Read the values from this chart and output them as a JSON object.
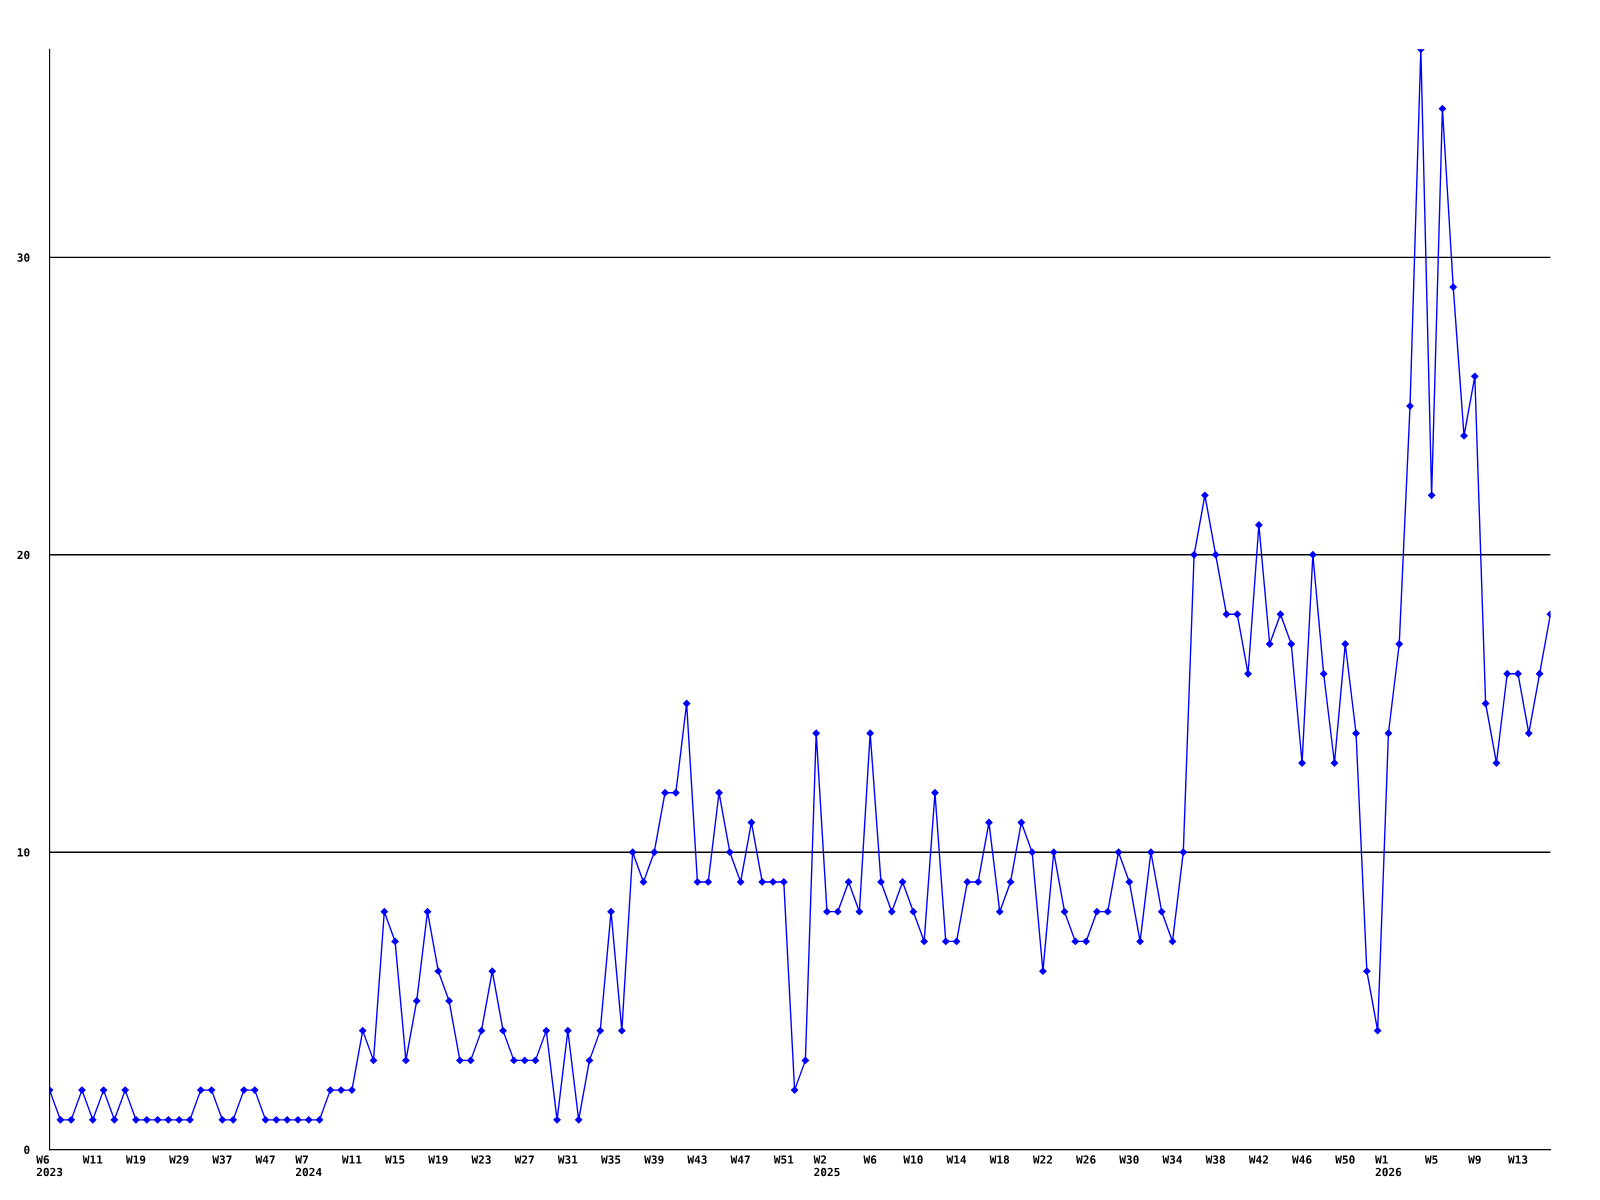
{
  "chart_data": {
    "type": "line",
    "categories": [
      "W6\n2023",
      null,
      null,
      null,
      "W11",
      null,
      null,
      null,
      "W19",
      null,
      null,
      null,
      "W29",
      null,
      null,
      null,
      "W37",
      null,
      null,
      null,
      "W47",
      null,
      null,
      null,
      "W7\n2024",
      null,
      null,
      null,
      "W11",
      null,
      null,
      null,
      "W15",
      null,
      null,
      null,
      "W19",
      null,
      null,
      null,
      "W23",
      null,
      null,
      null,
      "W27",
      null,
      null,
      null,
      "W31",
      null,
      null,
      null,
      "W35",
      null,
      null,
      null,
      "W39",
      null,
      null,
      null,
      "W43",
      null,
      null,
      null,
      "W47",
      null,
      null,
      null,
      "W51",
      null,
      null,
      null,
      "W2\n2025",
      null,
      null,
      null,
      "W6",
      null,
      null,
      null,
      "W10",
      null,
      null,
      null,
      "W14",
      null,
      null,
      null,
      "W18",
      null,
      null,
      null,
      "W22",
      null,
      null,
      null,
      "W26",
      null,
      null,
      null,
      "W30",
      null,
      null,
      null,
      "W34",
      null,
      null,
      null,
      "W38",
      null,
      null,
      null,
      "W42",
      null,
      null,
      null,
      "W46",
      null,
      null,
      null,
      "W50",
      null,
      null,
      null,
      "W1\n2026",
      null,
      null,
      null,
      "W5",
      null,
      null,
      null,
      "W9",
      null,
      null,
      null,
      "W13",
      null,
      null,
      null
    ],
    "series": [
      {
        "color": "#0000ff",
        "values": [
          2,
          1,
          1,
          2,
          1,
          2,
          1,
          2,
          1,
          1,
          1,
          1,
          1,
          1,
          2,
          2,
          1,
          1,
          2,
          2,
          1,
          1,
          1,
          1,
          1,
          1,
          2,
          2,
          2,
          4,
          3,
          8,
          7,
          3,
          5,
          8,
          6,
          5,
          3,
          3,
          4,
          6,
          4,
          3,
          3,
          3,
          4,
          1,
          4,
          1,
          3,
          4,
          8,
          4,
          10,
          9,
          10,
          12,
          12,
          15,
          9,
          9,
          12,
          10,
          9,
          11,
          9,
          9,
          9,
          2,
          3,
          14,
          8,
          8,
          9,
          8,
          14,
          9,
          8,
          9,
          8,
          7,
          12,
          7,
          7,
          9,
          9,
          11,
          8,
          9,
          11,
          10,
          6,
          10,
          8,
          7,
          7,
          8,
          8,
          10,
          9,
          7,
          10,
          8,
          7,
          10,
          20,
          22,
          20,
          18,
          18,
          16,
          21,
          17,
          18,
          17,
          13,
          20,
          16,
          13,
          17,
          14,
          6,
          4,
          14,
          17,
          25,
          37,
          22,
          35,
          29,
          24,
          26,
          15,
          13,
          16,
          16,
          14,
          16,
          18
        ]
      }
    ],
    "ylim": [
      0,
      37
    ],
    "yticks": [
      0,
      10,
      20,
      30
    ],
    "grid": "y",
    "marker": "diamond",
    "line_style": "solid"
  }
}
